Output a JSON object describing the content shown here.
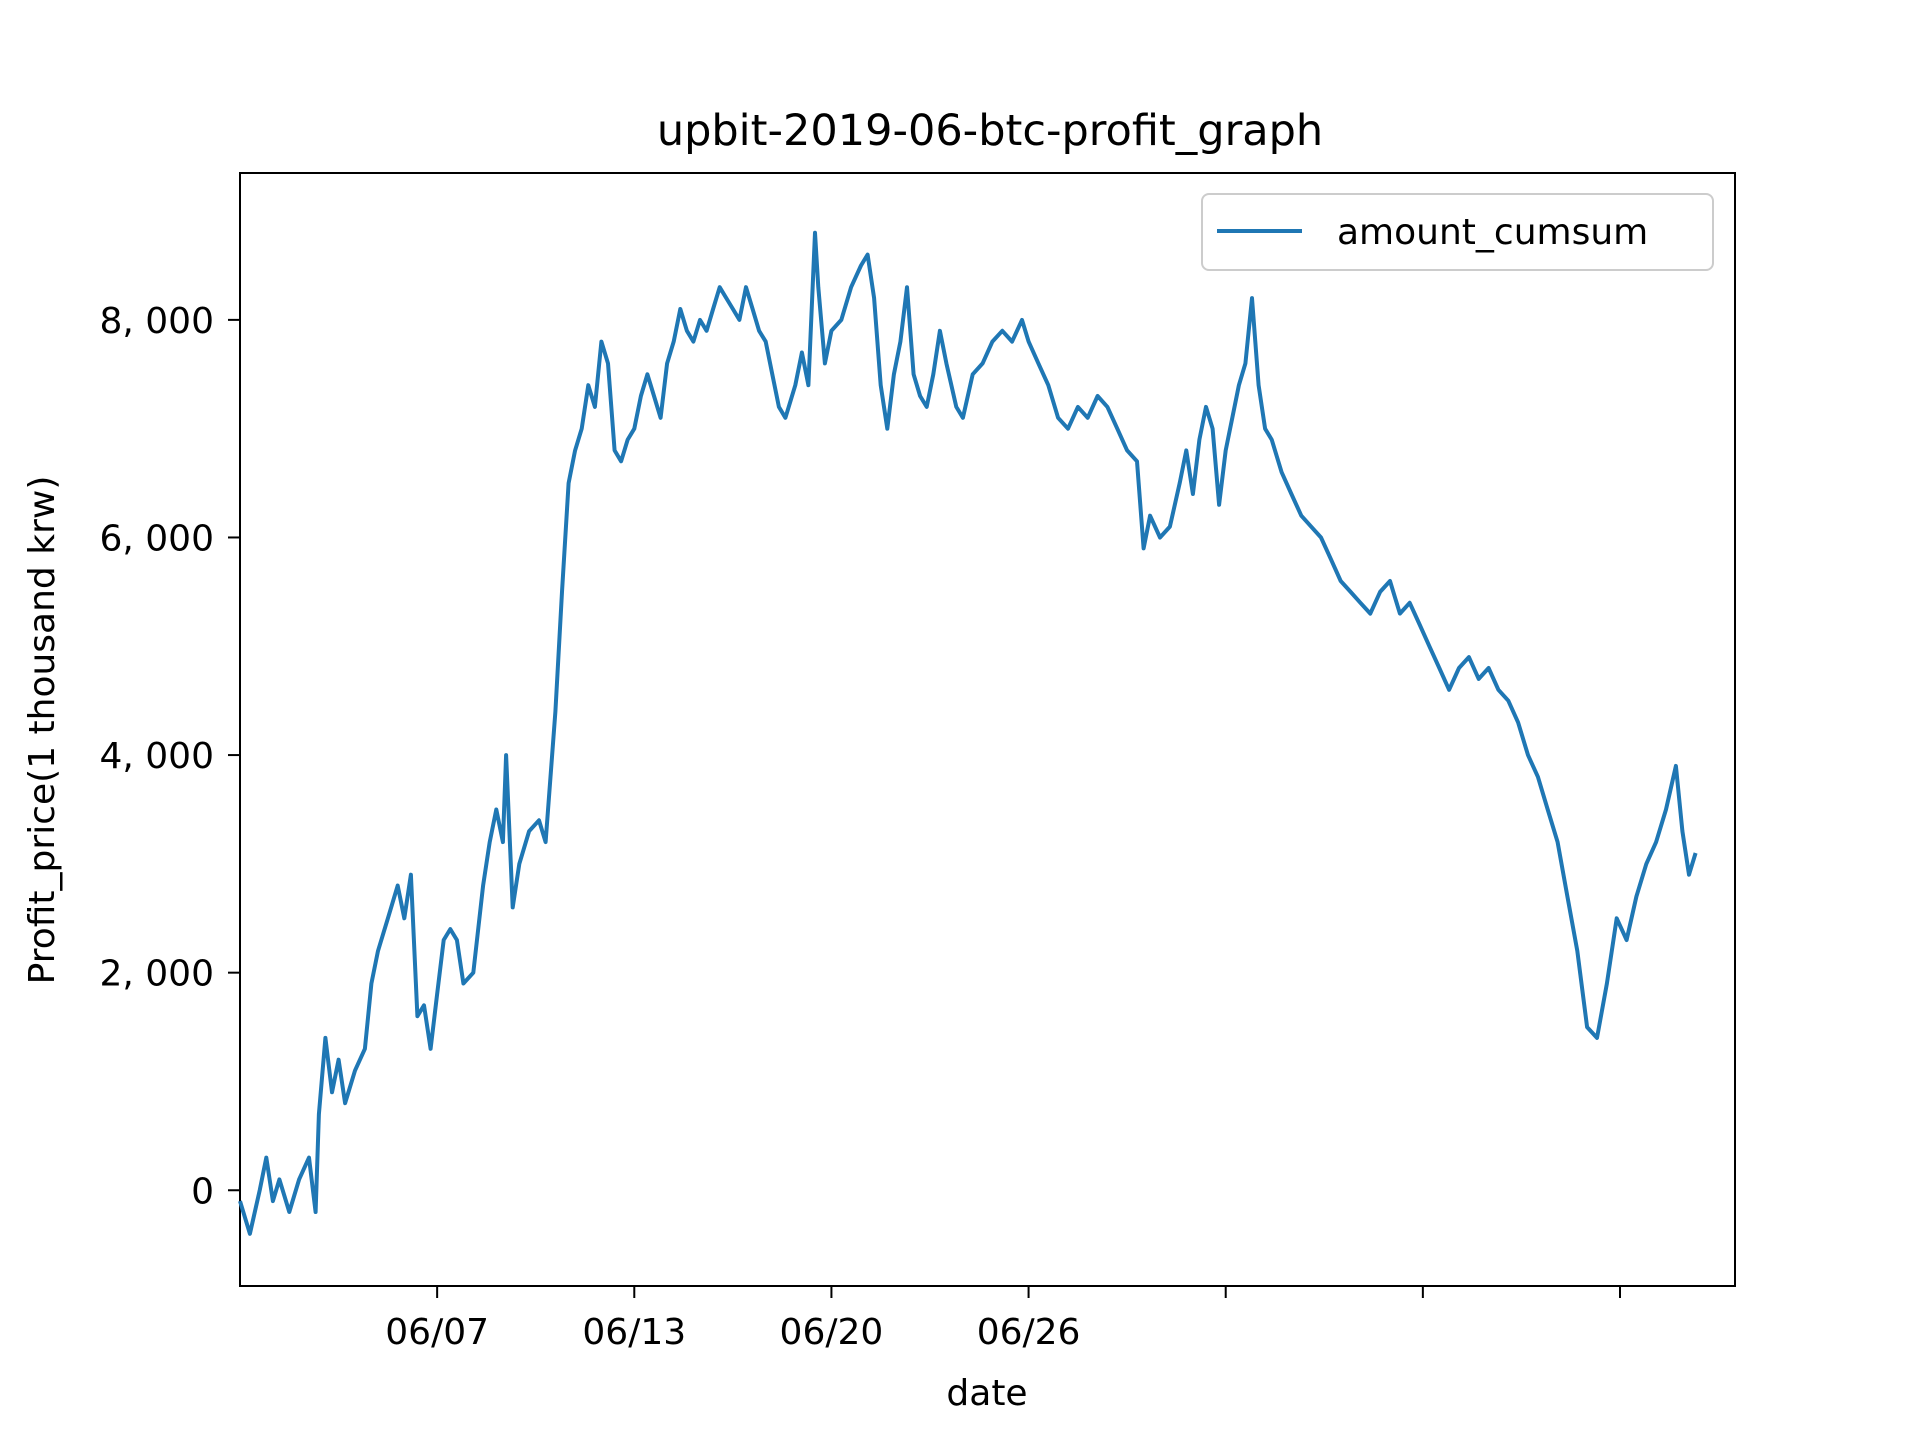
{
  "colors": {
    "series": "#1f77b4",
    "axes": "#000000",
    "background": "#ffffff",
    "legend_border": "#cccccc"
  },
  "chart_data": {
    "type": "line",
    "title": "upbit-2019-06-btc-profit_graph",
    "xlabel": "date",
    "ylabel": "Profit_price(1 thousand krw)",
    "grid": false,
    "legend_position": "top-right",
    "xlim": [
      1,
      46.5
    ],
    "ylim": [
      -880,
      9350
    ],
    "x_ticks": [
      {
        "x": 7,
        "label": "06/07"
      },
      {
        "x": 13,
        "label": "06/13"
      },
      {
        "x": 19,
        "label": "06/20"
      },
      {
        "x": 25,
        "label": "06/26"
      },
      {
        "x": 31,
        "label": ""
      },
      {
        "x": 37,
        "label": ""
      },
      {
        "x": 43,
        "label": ""
      }
    ],
    "y_ticks": [
      {
        "y": 0,
        "label": "0"
      },
      {
        "y": 2000,
        "label": "2, 000"
      },
      {
        "y": 4000,
        "label": "4, 000"
      },
      {
        "y": 6000,
        "label": "6, 000"
      },
      {
        "y": 8000,
        "label": "8, 000"
      }
    ],
    "series": [
      {
        "name": "amount_cumsum",
        "points": [
          [
            1.0,
            -100
          ],
          [
            1.3,
            -400
          ],
          [
            1.6,
            0
          ],
          [
            1.8,
            300
          ],
          [
            2.0,
            -100
          ],
          [
            2.2,
            100
          ],
          [
            2.5,
            -200
          ],
          [
            2.8,
            100
          ],
          [
            3.1,
            300
          ],
          [
            3.3,
            -200
          ],
          [
            3.4,
            700
          ],
          [
            3.6,
            1400
          ],
          [
            3.8,
            900
          ],
          [
            4.0,
            1200
          ],
          [
            4.2,
            800
          ],
          [
            4.5,
            1100
          ],
          [
            4.8,
            1300
          ],
          [
            5.0,
            1900
          ],
          [
            5.2,
            2200
          ],
          [
            5.5,
            2500
          ],
          [
            5.8,
            2800
          ],
          [
            6.0,
            2500
          ],
          [
            6.2,
            2900
          ],
          [
            6.4,
            1600
          ],
          [
            6.6,
            1700
          ],
          [
            6.8,
            1300
          ],
          [
            7.0,
            1800
          ],
          [
            7.2,
            2300
          ],
          [
            7.4,
            2400
          ],
          [
            7.6,
            2300
          ],
          [
            7.8,
            1900
          ],
          [
            8.1,
            2000
          ],
          [
            8.4,
            2800
          ],
          [
            8.6,
            3200
          ],
          [
            8.8,
            3500
          ],
          [
            9.0,
            3200
          ],
          [
            9.1,
            4000
          ],
          [
            9.3,
            2600
          ],
          [
            9.5,
            3000
          ],
          [
            9.8,
            3300
          ],
          [
            10.1,
            3400
          ],
          [
            10.3,
            3200
          ],
          [
            10.6,
            4400
          ],
          [
            10.8,
            5500
          ],
          [
            11.0,
            6500
          ],
          [
            11.2,
            6800
          ],
          [
            11.4,
            7000
          ],
          [
            11.6,
            7400
          ],
          [
            11.8,
            7200
          ],
          [
            12.0,
            7800
          ],
          [
            12.2,
            7600
          ],
          [
            12.4,
            6800
          ],
          [
            12.6,
            6700
          ],
          [
            12.8,
            6900
          ],
          [
            13.0,
            7000
          ],
          [
            13.2,
            7300
          ],
          [
            13.4,
            7500
          ],
          [
            13.6,
            7300
          ],
          [
            13.8,
            7100
          ],
          [
            14.0,
            7600
          ],
          [
            14.2,
            7800
          ],
          [
            14.4,
            8100
          ],
          [
            14.6,
            7900
          ],
          [
            14.8,
            7800
          ],
          [
            15.0,
            8000
          ],
          [
            15.2,
            7900
          ],
          [
            15.4,
            8100
          ],
          [
            15.6,
            8300
          ],
          [
            15.8,
            8200
          ],
          [
            16.0,
            8100
          ],
          [
            16.2,
            8000
          ],
          [
            16.4,
            8300
          ],
          [
            16.6,
            8100
          ],
          [
            16.8,
            7900
          ],
          [
            17.0,
            7800
          ],
          [
            17.2,
            7500
          ],
          [
            17.4,
            7200
          ],
          [
            17.6,
            7100
          ],
          [
            17.9,
            7400
          ],
          [
            18.1,
            7700
          ],
          [
            18.3,
            7400
          ],
          [
            18.5,
            8800
          ],
          [
            18.6,
            8300
          ],
          [
            18.8,
            7600
          ],
          [
            19.0,
            7900
          ],
          [
            19.3,
            8000
          ],
          [
            19.6,
            8300
          ],
          [
            19.9,
            8500
          ],
          [
            20.1,
            8600
          ],
          [
            20.3,
            8200
          ],
          [
            20.5,
            7400
          ],
          [
            20.7,
            7000
          ],
          [
            20.9,
            7500
          ],
          [
            21.1,
            7800
          ],
          [
            21.3,
            8300
          ],
          [
            21.5,
            7500
          ],
          [
            21.7,
            7300
          ],
          [
            21.9,
            7200
          ],
          [
            22.1,
            7500
          ],
          [
            22.3,
            7900
          ],
          [
            22.5,
            7600
          ],
          [
            22.8,
            7200
          ],
          [
            23.0,
            7100
          ],
          [
            23.3,
            7500
          ],
          [
            23.6,
            7600
          ],
          [
            23.9,
            7800
          ],
          [
            24.2,
            7900
          ],
          [
            24.5,
            7800
          ],
          [
            24.8,
            8000
          ],
          [
            25.0,
            7800
          ],
          [
            25.3,
            7600
          ],
          [
            25.6,
            7400
          ],
          [
            25.9,
            7100
          ],
          [
            26.2,
            7000
          ],
          [
            26.5,
            7200
          ],
          [
            26.8,
            7100
          ],
          [
            27.1,
            7300
          ],
          [
            27.4,
            7200
          ],
          [
            27.7,
            7000
          ],
          [
            28.0,
            6800
          ],
          [
            28.3,
            6700
          ],
          [
            28.5,
            5900
          ],
          [
            28.7,
            6200
          ],
          [
            29.0,
            6000
          ],
          [
            29.3,
            6100
          ],
          [
            29.6,
            6500
          ],
          [
            29.8,
            6800
          ],
          [
            30.0,
            6400
          ],
          [
            30.2,
            6900
          ],
          [
            30.4,
            7200
          ],
          [
            30.6,
            7000
          ],
          [
            30.8,
            6300
          ],
          [
            31.0,
            6800
          ],
          [
            31.2,
            7100
          ],
          [
            31.4,
            7400
          ],
          [
            31.6,
            7600
          ],
          [
            31.8,
            8200
          ],
          [
            32.0,
            7400
          ],
          [
            32.2,
            7000
          ],
          [
            32.4,
            6900
          ],
          [
            32.7,
            6600
          ],
          [
            33.0,
            6400
          ],
          [
            33.3,
            6200
          ],
          [
            33.6,
            6100
          ],
          [
            33.9,
            6000
          ],
          [
            34.2,
            5800
          ],
          [
            34.5,
            5600
          ],
          [
            34.8,
            5500
          ],
          [
            35.1,
            5400
          ],
          [
            35.4,
            5300
          ],
          [
            35.7,
            5500
          ],
          [
            36.0,
            5600
          ],
          [
            36.3,
            5300
          ],
          [
            36.6,
            5400
          ],
          [
            36.9,
            5200
          ],
          [
            37.2,
            5000
          ],
          [
            37.5,
            4800
          ],
          [
            37.8,
            4600
          ],
          [
            38.1,
            4800
          ],
          [
            38.4,
            4900
          ],
          [
            38.7,
            4700
          ],
          [
            39.0,
            4800
          ],
          [
            39.3,
            4600
          ],
          [
            39.6,
            4500
          ],
          [
            39.9,
            4300
          ],
          [
            40.2,
            4000
          ],
          [
            40.5,
            3800
          ],
          [
            40.8,
            3500
          ],
          [
            41.1,
            3200
          ],
          [
            41.4,
            2700
          ],
          [
            41.7,
            2200
          ],
          [
            42.0,
            1500
          ],
          [
            42.3,
            1400
          ],
          [
            42.6,
            1900
          ],
          [
            42.9,
            2500
          ],
          [
            43.2,
            2300
          ],
          [
            43.5,
            2700
          ],
          [
            43.8,
            3000
          ],
          [
            44.1,
            3200
          ],
          [
            44.4,
            3500
          ],
          [
            44.7,
            3900
          ],
          [
            44.9,
            3300
          ],
          [
            45.1,
            2900
          ],
          [
            45.3,
            3100
          ]
        ]
      }
    ]
  }
}
